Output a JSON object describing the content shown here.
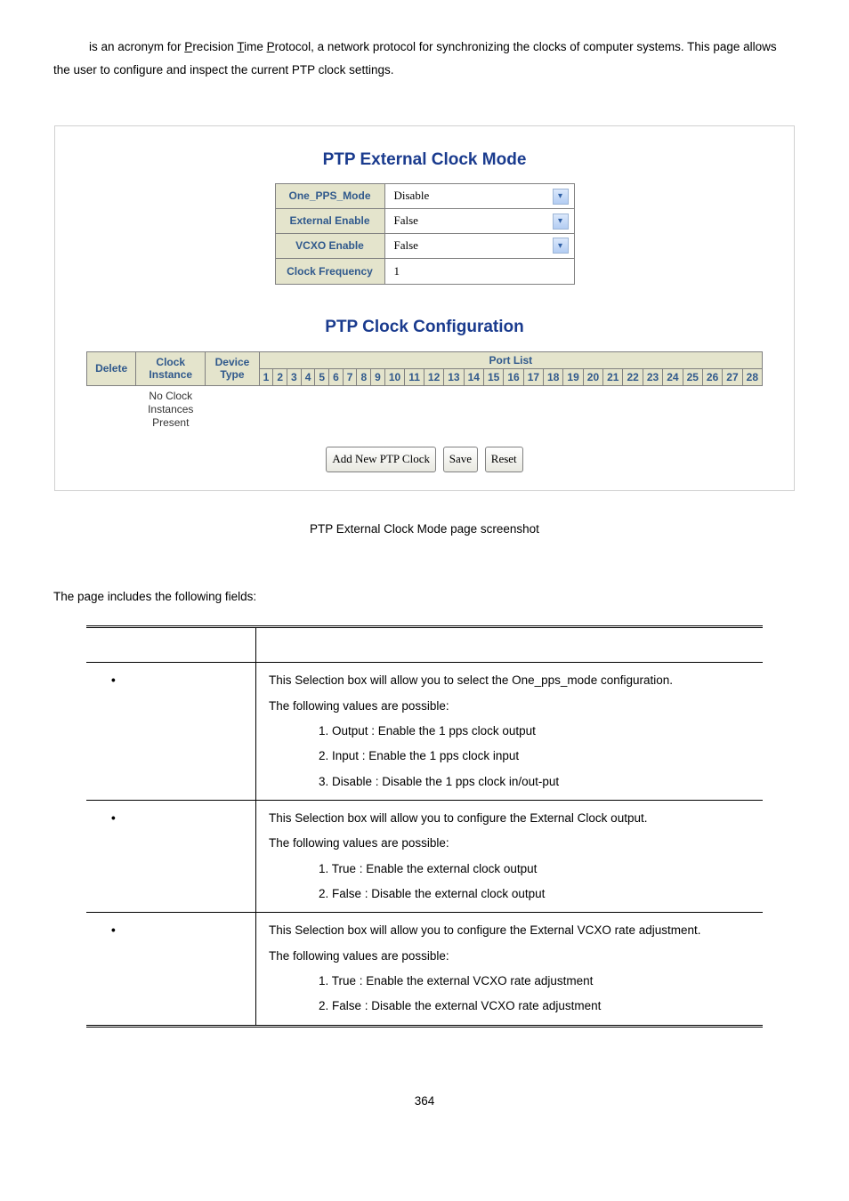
{
  "intro": {
    "part1": " is an acronym for ",
    "p": "P",
    "part2": "recision ",
    "t": "T",
    "part3": "ime ",
    "pr": "P",
    "part4": "rotocol, a network protocol for synchronizing the clocks of computer systems. This page allows the user to configure and inspect the current PTP clock settings."
  },
  "ext_title": "PTP External Clock Mode",
  "ext_rows": {
    "labels": [
      "One_PPS_Mode",
      "External Enable",
      "VCXO Enable",
      "Clock Frequency"
    ],
    "values": [
      "Disable",
      "False",
      "False",
      "1"
    ],
    "is_select": [
      true,
      true,
      true,
      false
    ]
  },
  "clk_title": "PTP Clock Configuration",
  "clk_headers": {
    "delete": "Delete",
    "instance": "Clock Instance",
    "device": "Device Type",
    "portlist": "Port List"
  },
  "port_count": 28,
  "no_instances": "No Clock Instances Present",
  "buttons": {
    "add": "Add New PTP Clock",
    "save": "Save",
    "reset": "Reset"
  },
  "caption": "PTP External Clock Mode page screenshot",
  "fields_intro": "The page includes the following fields:",
  "fields": [
    {
      "desc_intro": "This Selection box will allow you to select the One_pps_mode configuration.",
      "desc_poss": "The following values are possible:",
      "items": [
        "1. Output : Enable the 1 pps clock output",
        "2. Input : Enable the 1 pps clock input",
        "3. Disable : Disable the 1 pps clock in/out-put"
      ]
    },
    {
      "desc_intro": "This Selection box will allow you to configure the External Clock output.",
      "desc_poss": "The following values are possible:",
      "items": [
        "1. True : Enable the external clock output",
        "2. False : Disable the external clock output"
      ]
    },
    {
      "desc_intro": "This Selection box will allow you to configure the External VCXO rate adjustment.",
      "desc_poss": "The following values are possible:",
      "items": [
        "1. True : Enable the external VCXO rate adjustment",
        "2. False : Disable the external VCXO rate adjustment"
      ]
    }
  ],
  "page_number": "364"
}
